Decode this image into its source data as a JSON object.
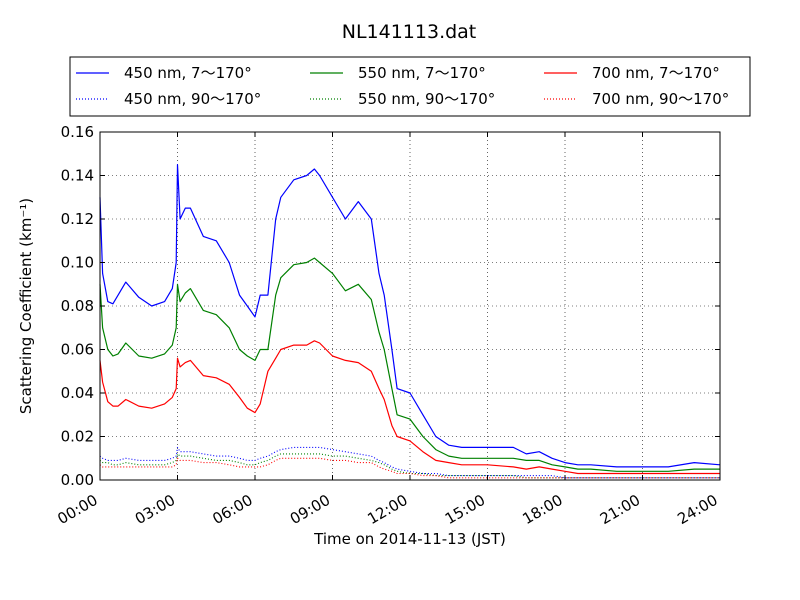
{
  "chart_data": {
    "type": "line",
    "title": "NL141113.dat",
    "xlabel": "Time on 2014-11-13 (JST)",
    "ylabel": "Scattering Coefficient (km⁻¹)",
    "xlim": [
      0,
      24
    ],
    "ylim": [
      0,
      0.16
    ],
    "xticks": [
      0,
      3,
      6,
      9,
      12,
      15,
      18,
      21,
      24
    ],
    "xtick_labels": [
      "00:00",
      "03:00",
      "06:00",
      "09:00",
      "12:00",
      "15:00",
      "18:00",
      "21:00",
      "24:00"
    ],
    "yticks": [
      0,
      0.02,
      0.04,
      0.06,
      0.08,
      0.1,
      0.12,
      0.14,
      0.16
    ],
    "ytick_labels": [
      "0.00",
      "0.02",
      "0.04",
      "0.06",
      "0.08",
      "0.10",
      "0.12",
      "0.14",
      "0.16"
    ],
    "grid": true,
    "legend_position": "top",
    "x": [
      0,
      0.1,
      0.3,
      0.5,
      0.7,
      1.0,
      1.5,
      2.0,
      2.5,
      2.8,
      2.95,
      3.0,
      3.1,
      3.3,
      3.5,
      4.0,
      4.5,
      5.0,
      5.4,
      5.7,
      6.0,
      6.2,
      6.5,
      6.8,
      7.0,
      7.5,
      8.0,
      8.3,
      8.5,
      9.0,
      9.5,
      10.0,
      10.5,
      10.8,
      11.0,
      11.3,
      11.5,
      12.0,
      12.5,
      13.0,
      13.5,
      14.0,
      14.5,
      15.0,
      16.0,
      16.5,
      17.0,
      17.5,
      18.0,
      18.5,
      19.0,
      20.0,
      21.0,
      22.0,
      23.0,
      24.0
    ],
    "series": [
      {
        "name": "450 nm, 7～170°",
        "color": "#0000ff",
        "style": "solid",
        "values": [
          0.13,
          0.095,
          0.082,
          0.081,
          0.085,
          0.091,
          0.084,
          0.08,
          0.082,
          0.088,
          0.1,
          0.145,
          0.12,
          0.125,
          0.125,
          0.112,
          0.11,
          0.1,
          0.085,
          0.08,
          0.075,
          0.085,
          0.085,
          0.12,
          0.13,
          0.138,
          0.14,
          0.143,
          0.14,
          0.13,
          0.12,
          0.128,
          0.12,
          0.095,
          0.085,
          0.06,
          0.042,
          0.04,
          0.03,
          0.02,
          0.016,
          0.015,
          0.015,
          0.015,
          0.015,
          0.012,
          0.013,
          0.01,
          0.008,
          0.007,
          0.007,
          0.006,
          0.006,
          0.006,
          0.008,
          0.007
        ]
      },
      {
        "name": "550 nm, 7～170°",
        "color": "#008000",
        "style": "solid",
        "values": [
          0.09,
          0.07,
          0.06,
          0.057,
          0.058,
          0.063,
          0.057,
          0.056,
          0.058,
          0.062,
          0.07,
          0.09,
          0.082,
          0.086,
          0.088,
          0.078,
          0.076,
          0.07,
          0.06,
          0.057,
          0.055,
          0.06,
          0.06,
          0.085,
          0.093,
          0.099,
          0.1,
          0.102,
          0.1,
          0.095,
          0.087,
          0.09,
          0.083,
          0.068,
          0.06,
          0.042,
          0.03,
          0.028,
          0.02,
          0.014,
          0.011,
          0.01,
          0.01,
          0.01,
          0.01,
          0.009,
          0.009,
          0.007,
          0.006,
          0.005,
          0.005,
          0.004,
          0.004,
          0.004,
          0.005,
          0.005
        ]
      },
      {
        "name": "700 nm, 7～170°",
        "color": "#ff0000",
        "style": "solid",
        "values": [
          0.055,
          0.045,
          0.036,
          0.034,
          0.034,
          0.037,
          0.034,
          0.033,
          0.035,
          0.038,
          0.042,
          0.056,
          0.052,
          0.054,
          0.055,
          0.048,
          0.047,
          0.044,
          0.038,
          0.033,
          0.031,
          0.035,
          0.05,
          0.056,
          0.06,
          0.062,
          0.062,
          0.064,
          0.063,
          0.057,
          0.055,
          0.054,
          0.05,
          0.042,
          0.037,
          0.025,
          0.02,
          0.018,
          0.013,
          0.009,
          0.008,
          0.007,
          0.007,
          0.007,
          0.006,
          0.005,
          0.006,
          0.005,
          0.004,
          0.003,
          0.003,
          0.003,
          0.003,
          0.003,
          0.003,
          0.003
        ]
      },
      {
        "name": "450 nm, 90～170°",
        "color": "#0000ff",
        "style": "dotted",
        "values": [
          0.011,
          0.01,
          0.009,
          0.009,
          0.009,
          0.01,
          0.009,
          0.009,
          0.009,
          0.01,
          0.011,
          0.015,
          0.013,
          0.013,
          0.013,
          0.012,
          0.011,
          0.011,
          0.01,
          0.009,
          0.009,
          0.01,
          0.011,
          0.013,
          0.014,
          0.015,
          0.015,
          0.015,
          0.015,
          0.014,
          0.013,
          0.012,
          0.011,
          0.009,
          0.008,
          0.006,
          0.005,
          0.004,
          0.003,
          0.003,
          0.002,
          0.002,
          0.002,
          0.002,
          0.002,
          0.002,
          0.002,
          0.002,
          0.001,
          0.001,
          0.001,
          0.001,
          0.001,
          0.001,
          0.001,
          0.001
        ]
      },
      {
        "name": "550 nm, 90～170°",
        "color": "#008000",
        "style": "dotted",
        "values": [
          0.009,
          0.008,
          0.008,
          0.007,
          0.007,
          0.008,
          0.007,
          0.007,
          0.007,
          0.008,
          0.009,
          0.012,
          0.011,
          0.011,
          0.011,
          0.01,
          0.009,
          0.009,
          0.008,
          0.007,
          0.007,
          0.008,
          0.009,
          0.011,
          0.012,
          0.012,
          0.012,
          0.012,
          0.012,
          0.011,
          0.011,
          0.01,
          0.009,
          0.008,
          0.007,
          0.005,
          0.004,
          0.003,
          0.003,
          0.002,
          0.002,
          0.002,
          0.002,
          0.002,
          0.002,
          0.001,
          0.001,
          0.001,
          0.001,
          0.001,
          0.001,
          0.001,
          0.001,
          0.001,
          0.001,
          0.001
        ]
      },
      {
        "name": "700 nm, 90～170°",
        "color": "#ff0000",
        "style": "dotted",
        "values": [
          0.007,
          0.006,
          0.006,
          0.006,
          0.006,
          0.006,
          0.006,
          0.006,
          0.006,
          0.006,
          0.007,
          0.01,
          0.009,
          0.009,
          0.009,
          0.008,
          0.008,
          0.007,
          0.006,
          0.006,
          0.006,
          0.006,
          0.007,
          0.009,
          0.01,
          0.01,
          0.01,
          0.01,
          0.01,
          0.009,
          0.009,
          0.008,
          0.008,
          0.006,
          0.005,
          0.004,
          0.003,
          0.003,
          0.002,
          0.002,
          0.001,
          0.001,
          0.001,
          0.001,
          0.001,
          0.001,
          0.001,
          0.001,
          0.001,
          0.001,
          0.001,
          0.001,
          0.001,
          0.001,
          0.001,
          0.001
        ]
      }
    ],
    "legend_order": [
      0,
      1,
      2,
      3,
      4,
      5
    ]
  }
}
